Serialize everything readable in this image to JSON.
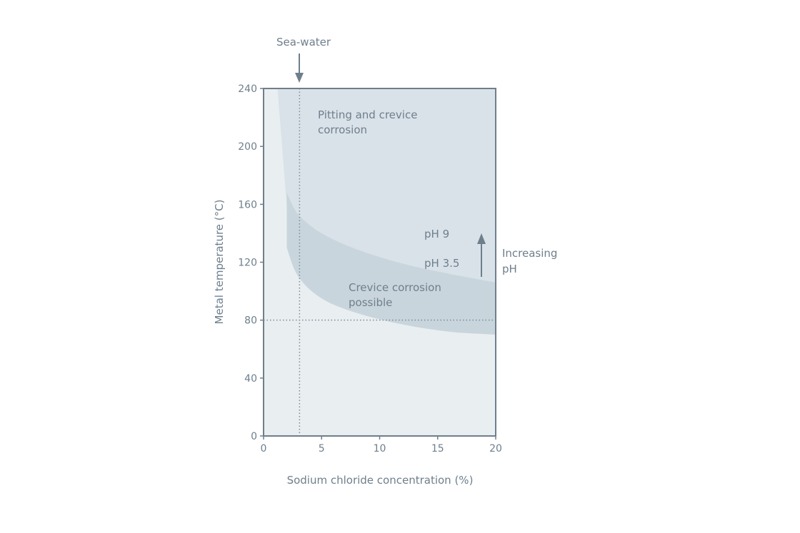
{
  "chart_data": {
    "type": "area",
    "title": "",
    "xlabel": "Sodium chloride concentration (%)",
    "ylabel": "Metal temperature (°C)",
    "xlim": [
      0,
      20
    ],
    "ylim": [
      0,
      240
    ],
    "x_ticks": [
      "0",
      "5",
      "10",
      "15",
      "20"
    ],
    "y_ticks": [
      "0",
      "40",
      "80",
      "120",
      "160",
      "200",
      "240"
    ],
    "grid": false,
    "regions": [
      {
        "name": "Pitting and crevice corrosion",
        "upper_boundary_pH9": [
          [
            1.2,
            240
          ],
          [
            1.6,
            200
          ],
          [
            2.0,
            160
          ],
          [
            2.4,
            130
          ],
          [
            3.0,
            114
          ],
          [
            5,
            100
          ],
          [
            8,
            92
          ],
          [
            12,
            88
          ],
          [
            16,
            85
          ],
          [
            20,
            84
          ]
        ]
      },
      {
        "name": "Crevice corrosion possible",
        "lower_boundary_pH3_5": [
          [
            2.0,
            168
          ],
          [
            3.0,
            153
          ],
          [
            5,
            140
          ],
          [
            8,
            129
          ],
          [
            12,
            119
          ],
          [
            16,
            112
          ],
          [
            20,
            106
          ]
        ],
        "lower_boundary_min": [
          [
            2.0,
            130
          ],
          [
            3.0,
            110
          ],
          [
            5,
            95
          ],
          [
            8,
            85
          ],
          [
            12,
            77
          ],
          [
            16,
            72
          ],
          [
            20,
            70
          ]
        ]
      }
    ],
    "reference_lines": {
      "vertical_x": 3.1,
      "horizontal_y": 80
    },
    "annotations": {
      "sea_water": "Sea-water",
      "pitting": [
        "Pitting and crevice",
        "corrosion"
      ],
      "crevice": [
        "Crevice corrosion",
        "possible"
      ],
      "ph9": "pH 9",
      "ph35": "pH 3.5",
      "increasing_ph": [
        "Increasing",
        "pH"
      ]
    },
    "colors": {
      "axis": "#6e7f8c",
      "background_region": "#e9eef1",
      "pitting_region": "#d9e2e8",
      "crevice_region": "#c9d5dc",
      "dotted": "#7a8c98"
    }
  }
}
